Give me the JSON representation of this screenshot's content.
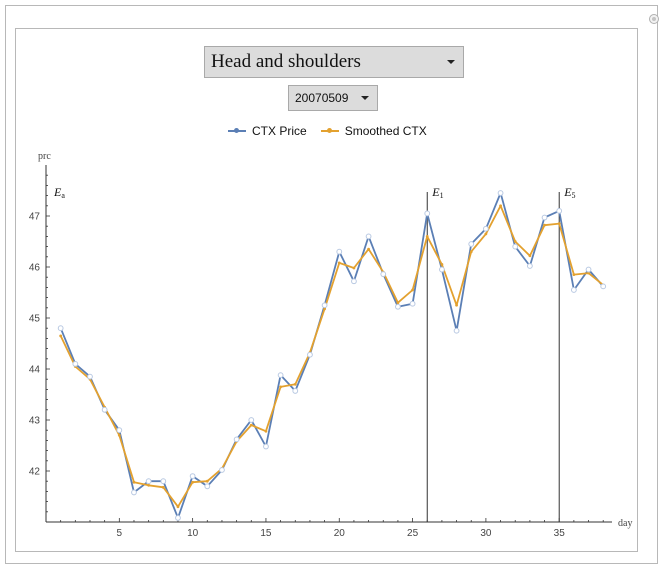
{
  "controls": {
    "pattern_selected": "Head and shoulders",
    "date_selected": "20070509"
  },
  "colors": {
    "price": "#5b7fb5",
    "smoothed": "#e3a12f",
    "point_fill": "#ffffff",
    "point_stroke": "#b9c9e2",
    "axis": "#333333",
    "marker_line": "#333333"
  },
  "chart_data": {
    "type": "line",
    "xlabel": "day",
    "ylabel": "prc",
    "xlim": [
      0,
      38.6
    ],
    "ylim": [
      41.0,
      48.0
    ],
    "x_ticks": [
      5,
      10,
      15,
      20,
      25,
      30,
      35
    ],
    "y_ticks": [
      42,
      43,
      44,
      45,
      46,
      47
    ],
    "legend_position": "top",
    "grid": false,
    "series": [
      {
        "name": "CTX Price",
        "x": [
          1,
          2,
          3,
          4,
          5,
          6,
          7,
          8,
          9,
          10,
          11,
          12,
          13,
          14,
          15,
          16,
          17,
          18,
          19,
          20,
          21,
          22,
          23,
          24,
          25,
          26,
          27,
          28,
          29,
          30,
          31,
          32,
          33,
          34,
          35,
          36,
          37,
          38
        ],
        "values": [
          44.8,
          44.1,
          43.85,
          43.2,
          42.8,
          41.58,
          41.8,
          41.8,
          41.08,
          41.9,
          41.7,
          42.02,
          42.62,
          43.0,
          42.48,
          43.88,
          43.57,
          44.28,
          45.25,
          46.3,
          45.72,
          46.6,
          45.86,
          45.22,
          45.28,
          47.05,
          45.95,
          44.75,
          46.45,
          46.75,
          47.45,
          46.4,
          46.02,
          46.97,
          47.1,
          45.55,
          45.95,
          45.62
        ]
      },
      {
        "name": "Smoothed CTX",
        "x": [
          1,
          2,
          3,
          4,
          5,
          6,
          7,
          8,
          9,
          10,
          11,
          12,
          13,
          14,
          15,
          16,
          17,
          18,
          19,
          20,
          21,
          22,
          23,
          24,
          25,
          26,
          27,
          28,
          29,
          30,
          31,
          32,
          33,
          34,
          35,
          36,
          37,
          38
        ],
        "values": [
          44.65,
          44.05,
          43.8,
          43.25,
          42.7,
          41.78,
          41.72,
          41.68,
          41.3,
          41.78,
          41.8,
          42.05,
          42.58,
          42.9,
          42.78,
          43.65,
          43.7,
          44.32,
          45.18,
          46.08,
          45.98,
          46.35,
          45.9,
          45.3,
          45.55,
          46.6,
          46.05,
          45.25,
          46.3,
          46.65,
          47.2,
          46.5,
          46.22,
          46.82,
          46.85,
          45.85,
          45.88,
          45.65
        ]
      }
    ],
    "annotations": [
      {
        "base": "E",
        "sub": "a",
        "x": 0
      },
      {
        "base": "E",
        "sub": "1",
        "x": 26
      },
      {
        "base": "E",
        "sub": "5",
        "x": 35
      }
    ]
  }
}
